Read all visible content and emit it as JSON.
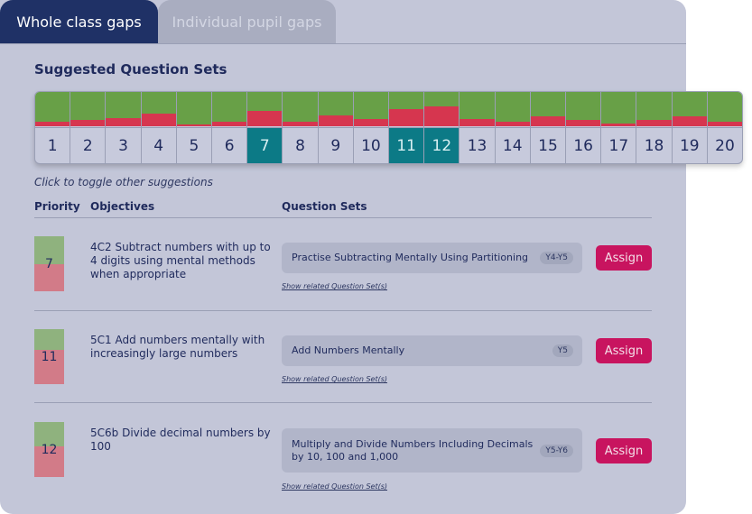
{
  "tabs": [
    {
      "label": "Whole class gaps",
      "active": true
    },
    {
      "label": "Individual pupil gaps",
      "active": false
    }
  ],
  "section_title": "Suggested Question Sets",
  "selector": {
    "items": [
      {
        "number": "1",
        "red_fraction": 0.12,
        "selected": false
      },
      {
        "number": "2",
        "red_fraction": 0.18,
        "selected": false
      },
      {
        "number": "3",
        "red_fraction": 0.24,
        "selected": false
      },
      {
        "number": "4",
        "red_fraction": 0.37,
        "selected": false
      },
      {
        "number": "5",
        "red_fraction": 0.06,
        "selected": false
      },
      {
        "number": "6",
        "red_fraction": 0.12,
        "selected": false
      },
      {
        "number": "7",
        "red_fraction": 0.45,
        "selected": true
      },
      {
        "number": "8",
        "red_fraction": 0.12,
        "selected": false
      },
      {
        "number": "9",
        "red_fraction": 0.32,
        "selected": false
      },
      {
        "number": "10",
        "red_fraction": 0.2,
        "selected": false
      },
      {
        "number": "11",
        "red_fraction": 0.5,
        "selected": true
      },
      {
        "number": "12",
        "red_fraction": 0.58,
        "selected": true
      },
      {
        "number": "13",
        "red_fraction": 0.2,
        "selected": false
      },
      {
        "number": "14",
        "red_fraction": 0.12,
        "selected": false
      },
      {
        "number": "15",
        "red_fraction": 0.3,
        "selected": false
      },
      {
        "number": "16",
        "red_fraction": 0.18,
        "selected": false
      },
      {
        "number": "17",
        "red_fraction": 0.08,
        "selected": false
      },
      {
        "number": "18",
        "red_fraction": 0.18,
        "selected": false
      },
      {
        "number": "19",
        "red_fraction": 0.3,
        "selected": false
      },
      {
        "number": "20",
        "red_fraction": 0.14,
        "selected": false
      }
    ]
  },
  "hint": "Click to toggle other suggestions",
  "columns": {
    "priority": "Priority",
    "objectives": "Objectives",
    "question_sets": "Question Sets"
  },
  "rows": [
    {
      "priority": "7",
      "objective": "4C2 Subtract numbers with up to 4 digits using mental methods when appropriate",
      "question_set": "Practise Subtracting Mentally Using Partitioning",
      "badge": "Y4-Y5",
      "related": "Show related Question Set(s)",
      "assign": "Assign"
    },
    {
      "priority": "11",
      "objective": "5C1 Add numbers mentally with increasingly large numbers",
      "question_set": "Add Numbers Mentally",
      "badge": "Y5",
      "related": "Show related Question Set(s)",
      "assign": "Assign"
    },
    {
      "priority": "12",
      "objective": "5C6b Divide decimal numbers by 100",
      "question_set": "Multiply and Divide Numbers Including Decimals by 10, 100 and 1,000",
      "badge": "Y5-Y6",
      "related": "Show related Question Set(s)",
      "assign": "Assign"
    }
  ],
  "colors": {
    "green": "#68a047",
    "red": "#d6364f",
    "selected": "#0c7a86",
    "assign": "#c8145f",
    "tab_active": "#1f3166"
  }
}
